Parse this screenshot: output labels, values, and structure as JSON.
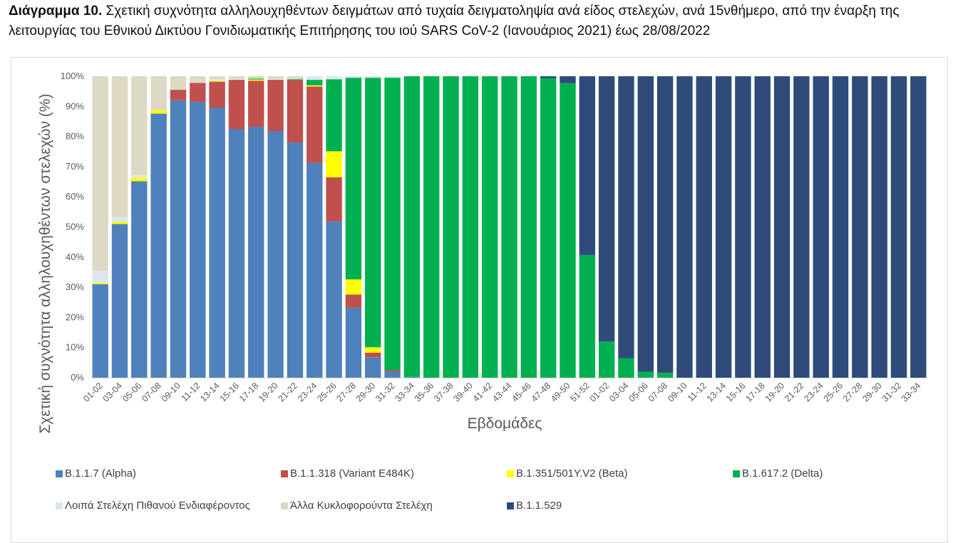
{
  "caption": {
    "label": "Διάγραμμα 10.",
    "text": " Σχετική συχνότητα αλληλουχηθέντων δειγμάτων από τυχαία δειγματοληψία ανά είδος στελεχών, ανά 15νθήμερο, από την έναρξη της λειτουργίας του Εθνικού Δικτύου Γονιδιωματικής Επιτήρησης του ιού SARS CoV-2 (Ιανουάριος 2021) έως 28/08/2022"
  },
  "chart_data": {
    "type": "bar",
    "stacked": "percent",
    "title": "",
    "xlabel": "Εβδομάδες",
    "ylabel": "Σχετική συχνότητα αλληλουχηθέντων στελεχών (%)",
    "ylim": [
      0,
      100
    ],
    "yticks": [
      "0%",
      "10%",
      "20%",
      "30%",
      "40%",
      "50%",
      "60%",
      "70%",
      "80%",
      "90%",
      "100%"
    ],
    "grid": false,
    "legend_position": "bottom",
    "categories": [
      "01-02",
      "03-04",
      "05-06",
      "07-08",
      "09-10",
      "11-12",
      "13-14",
      "15-16",
      "17-18",
      "19-20",
      "21-22",
      "23-24",
      "25-26",
      "27-28",
      "29-30",
      "31-32",
      "33-34",
      "35-36",
      "37-38",
      "39-40",
      "41-42",
      "43-44",
      "45-46",
      "47-48",
      "49-50",
      "51-52",
      "01-02",
      "03-04",
      "05-06",
      "07-08",
      "09-10",
      "11-12",
      "13-14",
      "15-16",
      "17-18",
      "19-20",
      "21-22",
      "23-24",
      "25-26",
      "27-28",
      "29-30",
      "31-32",
      "33-34"
    ],
    "series": [
      {
        "name": "B.1.1.7 (Alpha)",
        "color": "#4f81bd",
        "values": [
          31,
          51,
          65.2,
          87.6,
          92,
          91.5,
          89.6,
          82.5,
          83.2,
          81.8,
          78,
          71.3,
          51.8,
          23.2,
          6.8,
          2,
          0.3,
          0,
          0,
          0,
          0,
          0,
          0,
          0,
          0,
          0,
          0,
          0,
          0,
          0,
          0,
          0,
          0,
          0,
          0,
          0,
          0,
          0,
          0,
          0,
          0,
          0,
          0
        ]
      },
      {
        "name": "B.1.1.318 (Variant E484K)",
        "color": "#c0504d",
        "values": [
          0,
          0,
          0,
          0,
          3.5,
          6.3,
          8.6,
          16.3,
          15.3,
          17,
          20.7,
          25.3,
          14.7,
          4.4,
          1.5,
          0.5,
          0,
          0,
          0,
          0,
          0,
          0,
          0,
          0,
          0,
          0,
          0,
          0,
          0,
          0,
          0,
          0,
          0,
          0,
          0,
          0,
          0,
          0,
          0,
          0,
          0,
          0,
          0
        ]
      },
      {
        "name": "B.1.351/501Y.V2 (Beta)",
        "color": "#ffff00",
        "values": [
          0.5,
          0.8,
          1.2,
          1.1,
          0,
          0,
          0.3,
          0,
          0.4,
          0,
          0,
          0.4,
          8.6,
          5,
          1.8,
          0,
          0,
          0,
          0,
          0,
          0,
          0,
          0,
          0,
          0,
          0,
          0,
          0,
          0,
          0,
          0,
          0,
          0,
          0,
          0,
          0,
          0,
          0,
          0,
          0,
          0,
          0,
          0
        ]
      },
      {
        "name": "B.1.617.2 (Delta)",
        "color": "#00b050",
        "values": [
          0,
          0,
          0,
          0,
          0,
          0,
          0,
          0,
          0.3,
          0,
          0.3,
          1.8,
          23.9,
          66.9,
          89.4,
          97,
          99.7,
          100,
          100,
          100,
          100,
          100,
          100,
          99.4,
          97.7,
          40.7,
          12,
          6.5,
          2,
          1.6,
          0,
          0,
          0,
          0,
          0,
          0,
          0,
          0,
          0,
          0,
          0,
          0,
          0
        ]
      },
      {
        "name": "Λοιπά Στελέχη Πιθανού Ενδιαφέροντος",
        "color": "#dce6f2",
        "values": [
          4,
          1.5,
          0.8,
          0,
          0,
          0,
          0.5,
          0.3,
          0,
          0.3,
          0,
          1.2,
          1,
          0.5,
          0.5,
          0.5,
          0,
          0,
          0,
          0,
          0,
          0,
          0,
          0,
          0,
          0,
          0,
          0,
          0,
          0,
          0,
          0,
          0,
          0,
          0,
          0,
          0,
          0,
          0,
          0,
          0,
          0,
          0
        ]
      },
      {
        "name": "Άλλα Κυκλοφορούντα Στελέχη",
        "color": "#ddd9c4",
        "values": [
          64.5,
          46.7,
          32.8,
          11.3,
          4.5,
          2.2,
          1,
          0.9,
          0.8,
          0.9,
          1,
          0,
          0,
          0,
          0,
          0,
          0,
          0,
          0,
          0,
          0,
          0,
          0,
          0,
          0,
          0,
          0,
          0,
          0,
          0,
          0,
          0,
          0,
          0,
          0,
          0,
          0,
          0,
          0,
          0,
          0,
          0,
          0
        ]
      },
      {
        "name": "B.1.1.529",
        "color": "#2e4b7a",
        "values": [
          0,
          0,
          0,
          0,
          0,
          0,
          0,
          0,
          0,
          0,
          0,
          0,
          0,
          0,
          0,
          0,
          0,
          0,
          0,
          0,
          0,
          0,
          0,
          0.6,
          2.3,
          59.3,
          88,
          93.5,
          98,
          98.4,
          100,
          100,
          100,
          100,
          100,
          100,
          100,
          100,
          100,
          100,
          100,
          100,
          100
        ]
      }
    ],
    "legend": [
      {
        "label": "B.1.1.7 (Alpha)",
        "color": "#4f81bd"
      },
      {
        "label": "B.1.1.318 (Variant E484K)",
        "color": "#c0504d"
      },
      {
        "label": "B.1.351/501Y.V2 (Beta)",
        "color": "#ffff00"
      },
      {
        "label": "B.1.617.2 (Delta)",
        "color": "#00b050"
      },
      {
        "label": "Λοιπά Στελέχη Πιθανού Ενδιαφέροντος",
        "color": "#dce6f2"
      },
      {
        "label": "Άλλα Κυκλοφορούντα Στελέχη",
        "color": "#ddd9c4"
      },
      {
        "label": "B.1.1.529",
        "color": "#2e4b7a"
      }
    ]
  }
}
